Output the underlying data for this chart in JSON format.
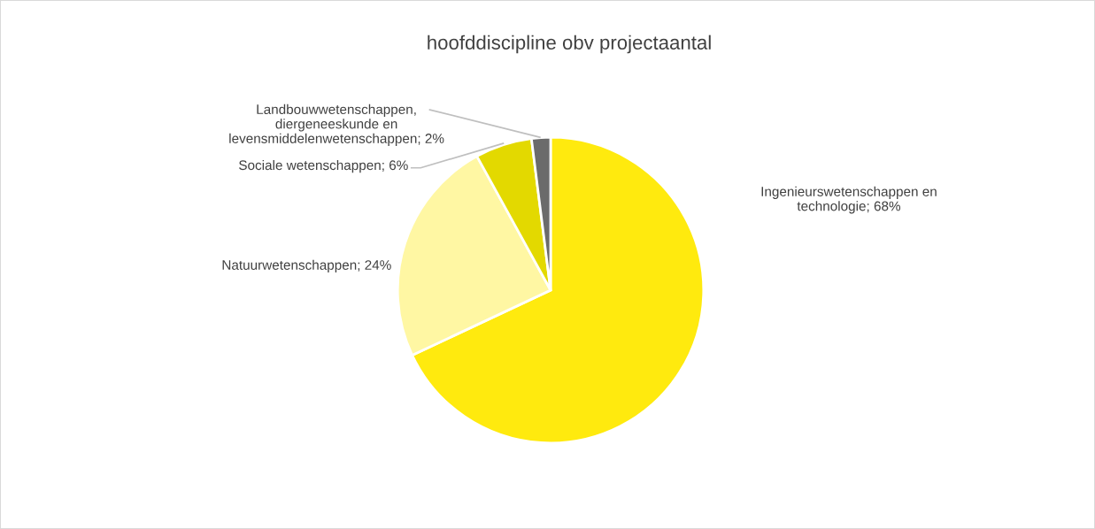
{
  "chart_data": {
    "type": "pie",
    "title": "hoofddiscipline obv projectaantal",
    "categories": [
      "Ingenieurswetenschappen en\ntechnologie",
      "Natuurwetenschappen",
      "Sociale wetenschappen",
      "Landbouwwetenschappen,\ndiergeneeskunde en\nlevensmiddelenwetenschappen"
    ],
    "values": [
      68,
      24,
      6,
      2
    ],
    "colors": [
      "#ffea0e",
      "#fff7a3",
      "#e3d900",
      "#6b6b6b"
    ],
    "value_labels": [
      "68%",
      "24%",
      "6%",
      "2%"
    ],
    "legend": false
  }
}
